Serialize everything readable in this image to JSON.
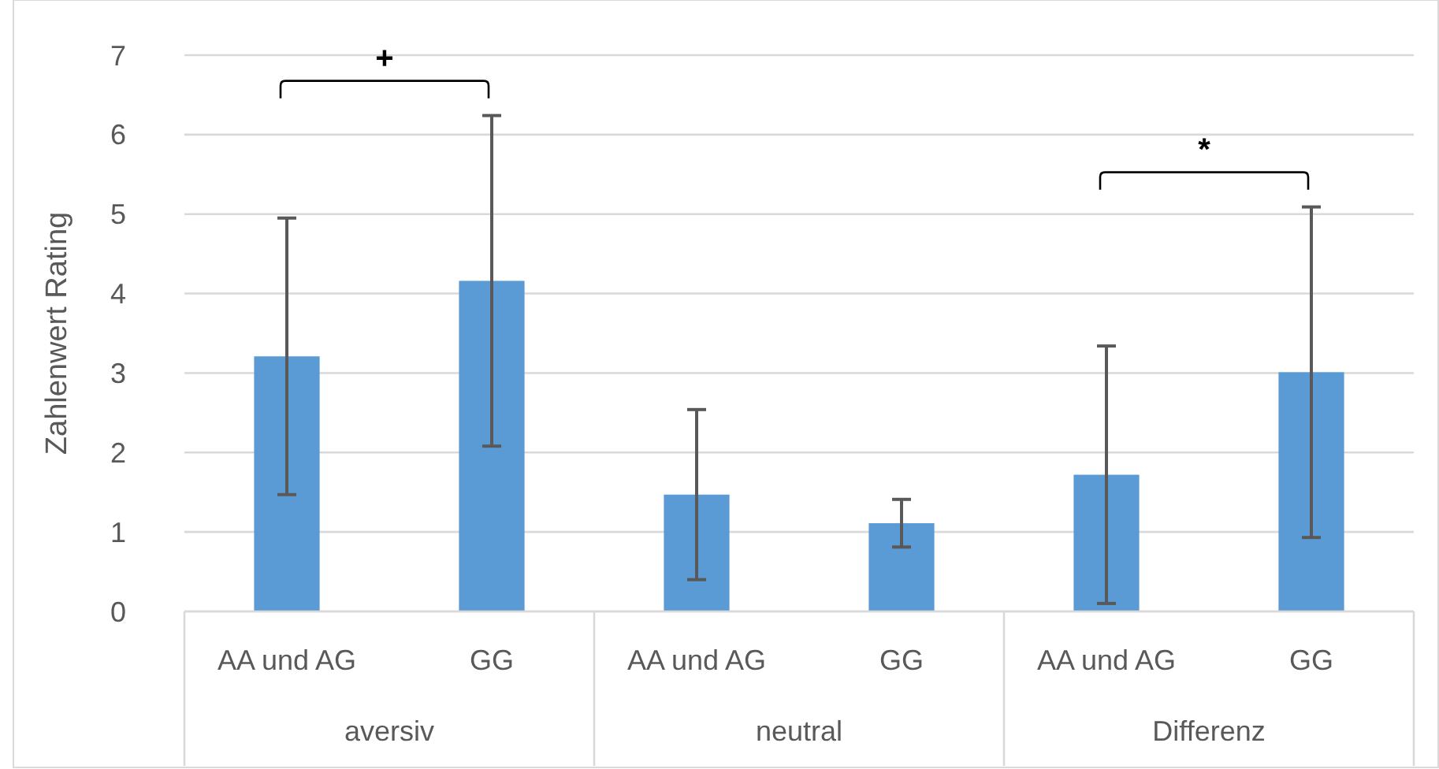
{
  "chart_data": {
    "type": "bar",
    "ylabel": "Zahlenwert Rating",
    "categories": [
      "AA und AG",
      "GG",
      "AA und AG",
      "GG",
      "AA und AG",
      "GG"
    ],
    "values": [
      3.21,
      4.16,
      1.47,
      1.11,
      1.72,
      3.01
    ],
    "errors": [
      1.74,
      2.08,
      1.07,
      0.3,
      1.62,
      2.08
    ],
    "color": "#5b9bd5",
    "ylim": [
      0,
      7
    ],
    "yticks": [
      0,
      1,
      2,
      3,
      4,
      5,
      6,
      7
    ],
    "grid": "y",
    "annotations": [
      "aversiv",
      "neutral",
      "Differenz",
      "+",
      "*"
    ]
  }
}
